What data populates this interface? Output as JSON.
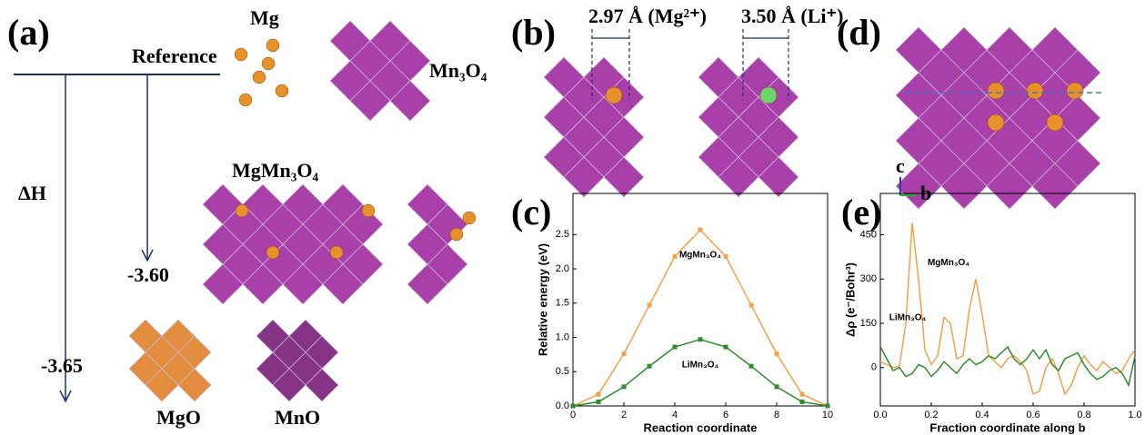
{
  "panels": {
    "a": {
      "label": "(a)",
      "mg": "Mg",
      "mn3o4": "Mn₃O₄",
      "reference": "Reference",
      "dh": "ΔH",
      "mgmn3o4": "MgMn₃O₄",
      "e1": "-3.60",
      "e2": "-3.65",
      "mgo": "MgO",
      "mno": "MnO"
    },
    "b": {
      "label": "(b)",
      "d1": "2.97 Å (Mg²⁺)",
      "d2": "3.50 Å (Li⁺)"
    },
    "d": {
      "label": "(d)",
      "axis_c": "c",
      "axis_b": "b"
    },
    "c": {
      "label": "(c)"
    },
    "e": {
      "label": "(e)"
    }
  },
  "chart_data": [
    {
      "type": "line",
      "x_label": "Reaction coordinate",
      "y_label": "Relative energy (eV)",
      "x": [
        0,
        1,
        2,
        3,
        4,
        5,
        6,
        7,
        8,
        9,
        10
      ],
      "series": [
        {
          "name": "MgMn₃O₄",
          "color": "#f5a04a",
          "values": [
            0,
            0.17,
            0.76,
            1.47,
            2.18,
            2.57,
            2.18,
            1.47,
            0.76,
            0.17,
            0
          ]
        },
        {
          "name": "LiMn₃O₄",
          "color": "#2e8b2e",
          "values": [
            0,
            0.06,
            0.28,
            0.58,
            0.86,
            0.97,
            0.86,
            0.58,
            0.28,
            0.06,
            0
          ]
        }
      ],
      "markers": true,
      "xlim": [
        0,
        10
      ],
      "xticks": [
        0,
        2,
        4,
        6,
        8,
        10
      ],
      "ylim": [
        0,
        3.1
      ],
      "yticks": [
        {
          "value": 0,
          "label": "0.0"
        },
        {
          "value": 0.5,
          "label": "0.5"
        },
        {
          "value": 1,
          "label": "1.0"
        },
        {
          "value": 1.5,
          "label": "1.5"
        },
        {
          "value": 2,
          "label": "2.0"
        },
        {
          "value": 2.5,
          "label": "2.5"
        }
      ]
    },
    {
      "type": "line",
      "x_label": "Fraction coordinate along b",
      "y_label": "Δρ (e⁻/Bohr³)",
      "x": [
        0,
        0.025,
        0.05,
        0.075,
        0.1,
        0.125,
        0.15,
        0.175,
        0.2,
        0.225,
        0.25,
        0.275,
        0.3,
        0.325,
        0.35,
        0.375,
        0.4,
        0.425,
        0.45,
        0.475,
        0.5,
        0.525,
        0.55,
        0.575,
        0.6,
        0.625,
        0.65,
        0.675,
        0.7,
        0.725,
        0.75,
        0.775,
        0.8,
        0.825,
        0.85,
        0.875,
        0.9,
        0.925,
        0.95,
        0.975,
        1.0
      ],
      "series": [
        {
          "name": "MgMn₃O₄",
          "color": "#f5a04a",
          "values": [
            20,
            10,
            0,
            5,
            150,
            490,
            300,
            60,
            10,
            40,
            170,
            150,
            30,
            40,
            200,
            300,
            180,
            40,
            20,
            0,
            30,
            40,
            20,
            -10,
            -90,
            -80,
            0,
            30,
            -20,
            -90,
            -60,
            0,
            40,
            10,
            -10,
            20,
            0,
            -20,
            -10,
            30,
            60
          ]
        },
        {
          "name": "LiMn₃O₄",
          "color": "#2e8b2e",
          "values": [
            70,
            30,
            -10,
            0,
            -30,
            -20,
            10,
            0,
            -30,
            -10,
            20,
            0,
            -20,
            10,
            30,
            10,
            20,
            40,
            30,
            50,
            70,
            30,
            10,
            30,
            60,
            30,
            60,
            10,
            -10,
            30,
            40,
            50,
            10,
            -20,
            -40,
            -30,
            -10,
            0,
            -20,
            -60,
            40
          ]
        }
      ],
      "markers": false,
      "xlim": [
        0,
        1
      ],
      "xticks": [
        {
          "value": 0,
          "label": "0.0"
        },
        {
          "value": 0.2,
          "label": "0.2"
        },
        {
          "value": 0.4,
          "label": "0.4"
        },
        {
          "value": 0.6,
          "label": "0.6"
        },
        {
          "value": 0.8,
          "label": "0.8"
        },
        {
          "value": 1,
          "label": "1.0"
        }
      ],
      "ylim": [
        -130,
        590
      ],
      "yticks": [
        0,
        150,
        300,
        450
      ]
    }
  ]
}
